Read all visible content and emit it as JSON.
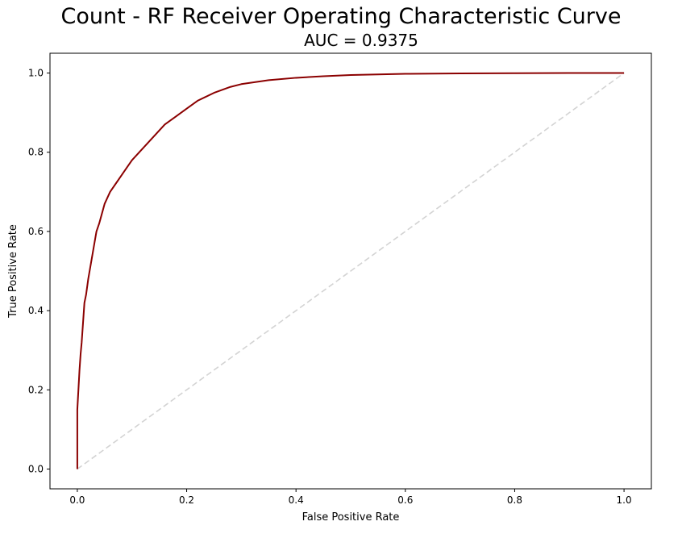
{
  "chart_data": {
    "type": "line",
    "title": "Count - RF Receiver Operating Characteristic Curve",
    "subtitle": "AUC = 0.9375",
    "xlabel": "False Positive Rate",
    "ylabel": "True Positive Rate",
    "xlim": [
      -0.05,
      1.05
    ],
    "ylim": [
      -0.05,
      1.05
    ],
    "xticks": [
      0.0,
      0.2,
      0.4,
      0.6,
      0.8,
      1.0
    ],
    "xtick_labels": [
      "0.0",
      "0.2",
      "0.4",
      "0.6",
      "0.8",
      "1.0"
    ],
    "yticks": [
      0.0,
      0.2,
      0.4,
      0.6,
      0.8,
      1.0
    ],
    "ytick_labels": [
      "0.0",
      "0.2",
      "0.4",
      "0.6",
      "0.8",
      "1.0"
    ],
    "grid": false,
    "series": [
      {
        "style": "solid",
        "color": "#8b0000",
        "x": [
          0.0,
          0.0,
          0.002,
          0.004,
          0.006,
          0.008,
          0.01,
          0.013,
          0.016,
          0.02,
          0.025,
          0.03,
          0.035,
          0.04,
          0.045,
          0.05,
          0.06,
          0.07,
          0.08,
          0.09,
          0.1,
          0.12,
          0.14,
          0.16,
          0.18,
          0.2,
          0.22,
          0.25,
          0.28,
          0.3,
          0.35,
          0.4,
          0.45,
          0.5,
          0.6,
          0.7,
          0.8,
          0.9,
          1.0
        ],
        "y": [
          0.0,
          0.15,
          0.2,
          0.25,
          0.29,
          0.32,
          0.36,
          0.42,
          0.44,
          0.48,
          0.52,
          0.56,
          0.6,
          0.62,
          0.645,
          0.67,
          0.7,
          0.72,
          0.74,
          0.76,
          0.78,
          0.81,
          0.84,
          0.87,
          0.89,
          0.91,
          0.93,
          0.95,
          0.965,
          0.972,
          0.982,
          0.988,
          0.992,
          0.995,
          0.998,
          0.999,
          0.9995,
          1.0,
          1.0
        ]
      },
      {
        "style": "dashed",
        "color": "#d3d3d3",
        "x": [
          0.0,
          1.0
        ],
        "y": [
          0.0,
          1.0
        ]
      }
    ]
  }
}
